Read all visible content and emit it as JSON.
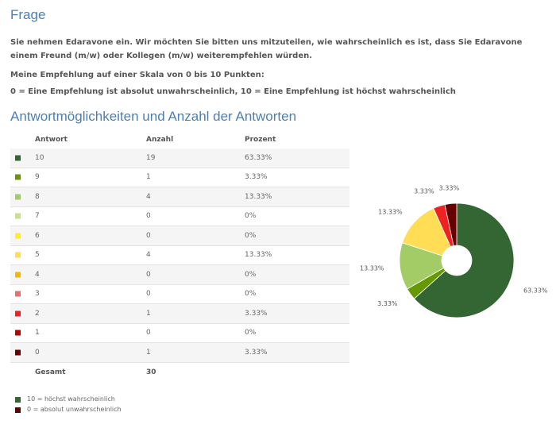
{
  "question": {
    "heading": "Frage",
    "text": "Sie nehmen Edaravone ein. Wir möchten Sie bitten uns mitzuteilen, wie wahrscheinlich es ist, dass Sie Edaravone einem Freund (m/w) oder Kollegen (m/w) weiterempfehlen würden.",
    "scale_line": "Meine Empfehlung auf einer Skala von 0 bis 10 Punkten:",
    "scale_explanation": "0 = Eine Empfehlung ist absolut unwahrscheinlich, 10 = Eine Empfehlung ist höchst wahrscheinlich"
  },
  "answers": {
    "heading": "Antwortmöglichkeiten und Anzahl der Antworten",
    "columns": [
      "Antwort",
      "Anzahl",
      "Prozent"
    ],
    "total_label": "Gesamt",
    "total_count": "30"
  },
  "legend": [
    {
      "color": "#336633",
      "label": "10 = höchst wahrscheinlich"
    },
    {
      "color": "#660000",
      "label": "0  = absolut unwahrscheinlich"
    }
  ],
  "chart_data": {
    "type": "pie",
    "donut": true,
    "categories": [
      "10",
      "9",
      "8",
      "7",
      "6",
      "5",
      "4",
      "3",
      "2",
      "1",
      "0"
    ],
    "counts": [
      19,
      1,
      4,
      0,
      0,
      4,
      0,
      0,
      1,
      0,
      1
    ],
    "percent_labels": [
      "63.33%",
      "3.33%",
      "13.33%",
      "0%",
      "0%",
      "13.33%",
      "0%",
      "0%",
      "3.33%",
      "0%",
      "3.33%"
    ],
    "values": [
      63.33,
      3.33,
      13.33,
      0,
      0,
      13.33,
      0,
      0,
      3.33,
      0,
      3.33
    ],
    "colors": [
      "#336633",
      "#669900",
      "#a3cc66",
      "#c8e08a",
      "#ffee22",
      "#ffdd55",
      "#f5b800",
      "#e87070",
      "#ee2222",
      "#bb0000",
      "#660000"
    ]
  }
}
